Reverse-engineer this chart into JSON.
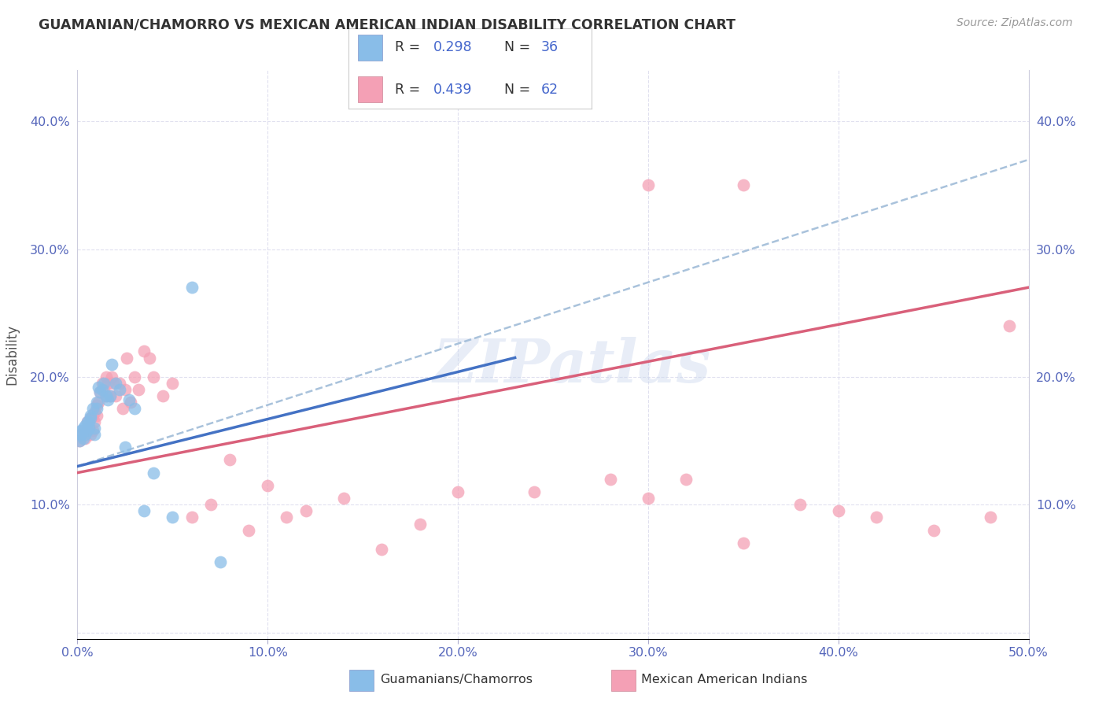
{
  "title": "GUAMANIAN/CHAMORRO VS MEXICAN AMERICAN INDIAN DISABILITY CORRELATION CHART",
  "source": "Source: ZipAtlas.com",
  "ylabel_label": "Disability",
  "xlim": [
    0.0,
    0.5
  ],
  "ylim": [
    0.0,
    0.44
  ],
  "xticks": [
    0.0,
    0.1,
    0.2,
    0.3,
    0.4,
    0.5
  ],
  "yticks": [
    0.0,
    0.1,
    0.2,
    0.3,
    0.4
  ],
  "xticklabels": [
    "0.0%",
    "10.0%",
    "20.0%",
    "30.0%",
    "40.0%",
    "50.0%"
  ],
  "yticklabels": [
    "",
    "10.0%",
    "20.0%",
    "30.0%",
    "40.0%"
  ],
  "legend_r1": "0.298",
  "legend_n1": "36",
  "legend_r2": "0.439",
  "legend_n2": "62",
  "legend_label1": "Guamanians/Chamorros",
  "legend_label2": "Mexican American Indians",
  "color_blue": "#89bde8",
  "color_pink": "#f4a0b5",
  "line_blue": "#4472c4",
  "line_pink": "#d9607a",
  "line_dashed_color": "#a0bcd8",
  "watermark": "ZIPatlas",
  "blue_line_x0": 0.0,
  "blue_line_y0": 0.13,
  "blue_line_x1": 0.23,
  "blue_line_y1": 0.215,
  "pink_line_x0": 0.0,
  "pink_line_y0": 0.125,
  "pink_line_x1": 0.5,
  "pink_line_y1": 0.27,
  "dashed_line_x0": 0.0,
  "dashed_line_y0": 0.13,
  "dashed_line_x1": 0.5,
  "dashed_line_y1": 0.37,
  "guamanian_x": [
    0.001,
    0.002,
    0.002,
    0.003,
    0.003,
    0.004,
    0.004,
    0.005,
    0.005,
    0.006,
    0.006,
    0.007,
    0.007,
    0.008,
    0.009,
    0.009,
    0.01,
    0.01,
    0.011,
    0.012,
    0.013,
    0.014,
    0.015,
    0.016,
    0.017,
    0.018,
    0.02,
    0.022,
    0.025,
    0.027,
    0.03,
    0.035,
    0.04,
    0.05,
    0.06,
    0.075
  ],
  "guamanian_y": [
    0.15,
    0.155,
    0.158,
    0.152,
    0.16,
    0.155,
    0.162,
    0.158,
    0.165,
    0.16,
    0.165,
    0.168,
    0.17,
    0.175,
    0.155,
    0.16,
    0.175,
    0.18,
    0.192,
    0.188,
    0.19,
    0.195,
    0.185,
    0.182,
    0.185,
    0.21,
    0.195,
    0.19,
    0.145,
    0.182,
    0.175,
    0.095,
    0.125,
    0.09,
    0.27,
    0.055
  ],
  "mexican_x": [
    0.001,
    0.002,
    0.003,
    0.004,
    0.005,
    0.005,
    0.006,
    0.007,
    0.007,
    0.008,
    0.008,
    0.009,
    0.009,
    0.01,
    0.01,
    0.011,
    0.012,
    0.013,
    0.014,
    0.015,
    0.015,
    0.016,
    0.017,
    0.018,
    0.019,
    0.02,
    0.022,
    0.024,
    0.025,
    0.026,
    0.028,
    0.03,
    0.032,
    0.035,
    0.038,
    0.04,
    0.045,
    0.05,
    0.06,
    0.07,
    0.08,
    0.09,
    0.1,
    0.11,
    0.12,
    0.14,
    0.16,
    0.18,
    0.2,
    0.24,
    0.28,
    0.3,
    0.32,
    0.35,
    0.38,
    0.4,
    0.42,
    0.45,
    0.48,
    0.49,
    0.3,
    0.35
  ],
  "mexican_y": [
    0.15,
    0.155,
    0.158,
    0.152,
    0.158,
    0.165,
    0.16,
    0.155,
    0.168,
    0.158,
    0.17,
    0.165,
    0.172,
    0.17,
    0.178,
    0.18,
    0.188,
    0.195,
    0.19,
    0.185,
    0.2,
    0.195,
    0.185,
    0.2,
    0.195,
    0.185,
    0.195,
    0.175,
    0.19,
    0.215,
    0.18,
    0.2,
    0.19,
    0.22,
    0.215,
    0.2,
    0.185,
    0.195,
    0.09,
    0.1,
    0.135,
    0.08,
    0.115,
    0.09,
    0.095,
    0.105,
    0.065,
    0.085,
    0.11,
    0.11,
    0.12,
    0.105,
    0.12,
    0.07,
    0.1,
    0.095,
    0.09,
    0.08,
    0.09,
    0.24,
    0.35,
    0.35
  ]
}
